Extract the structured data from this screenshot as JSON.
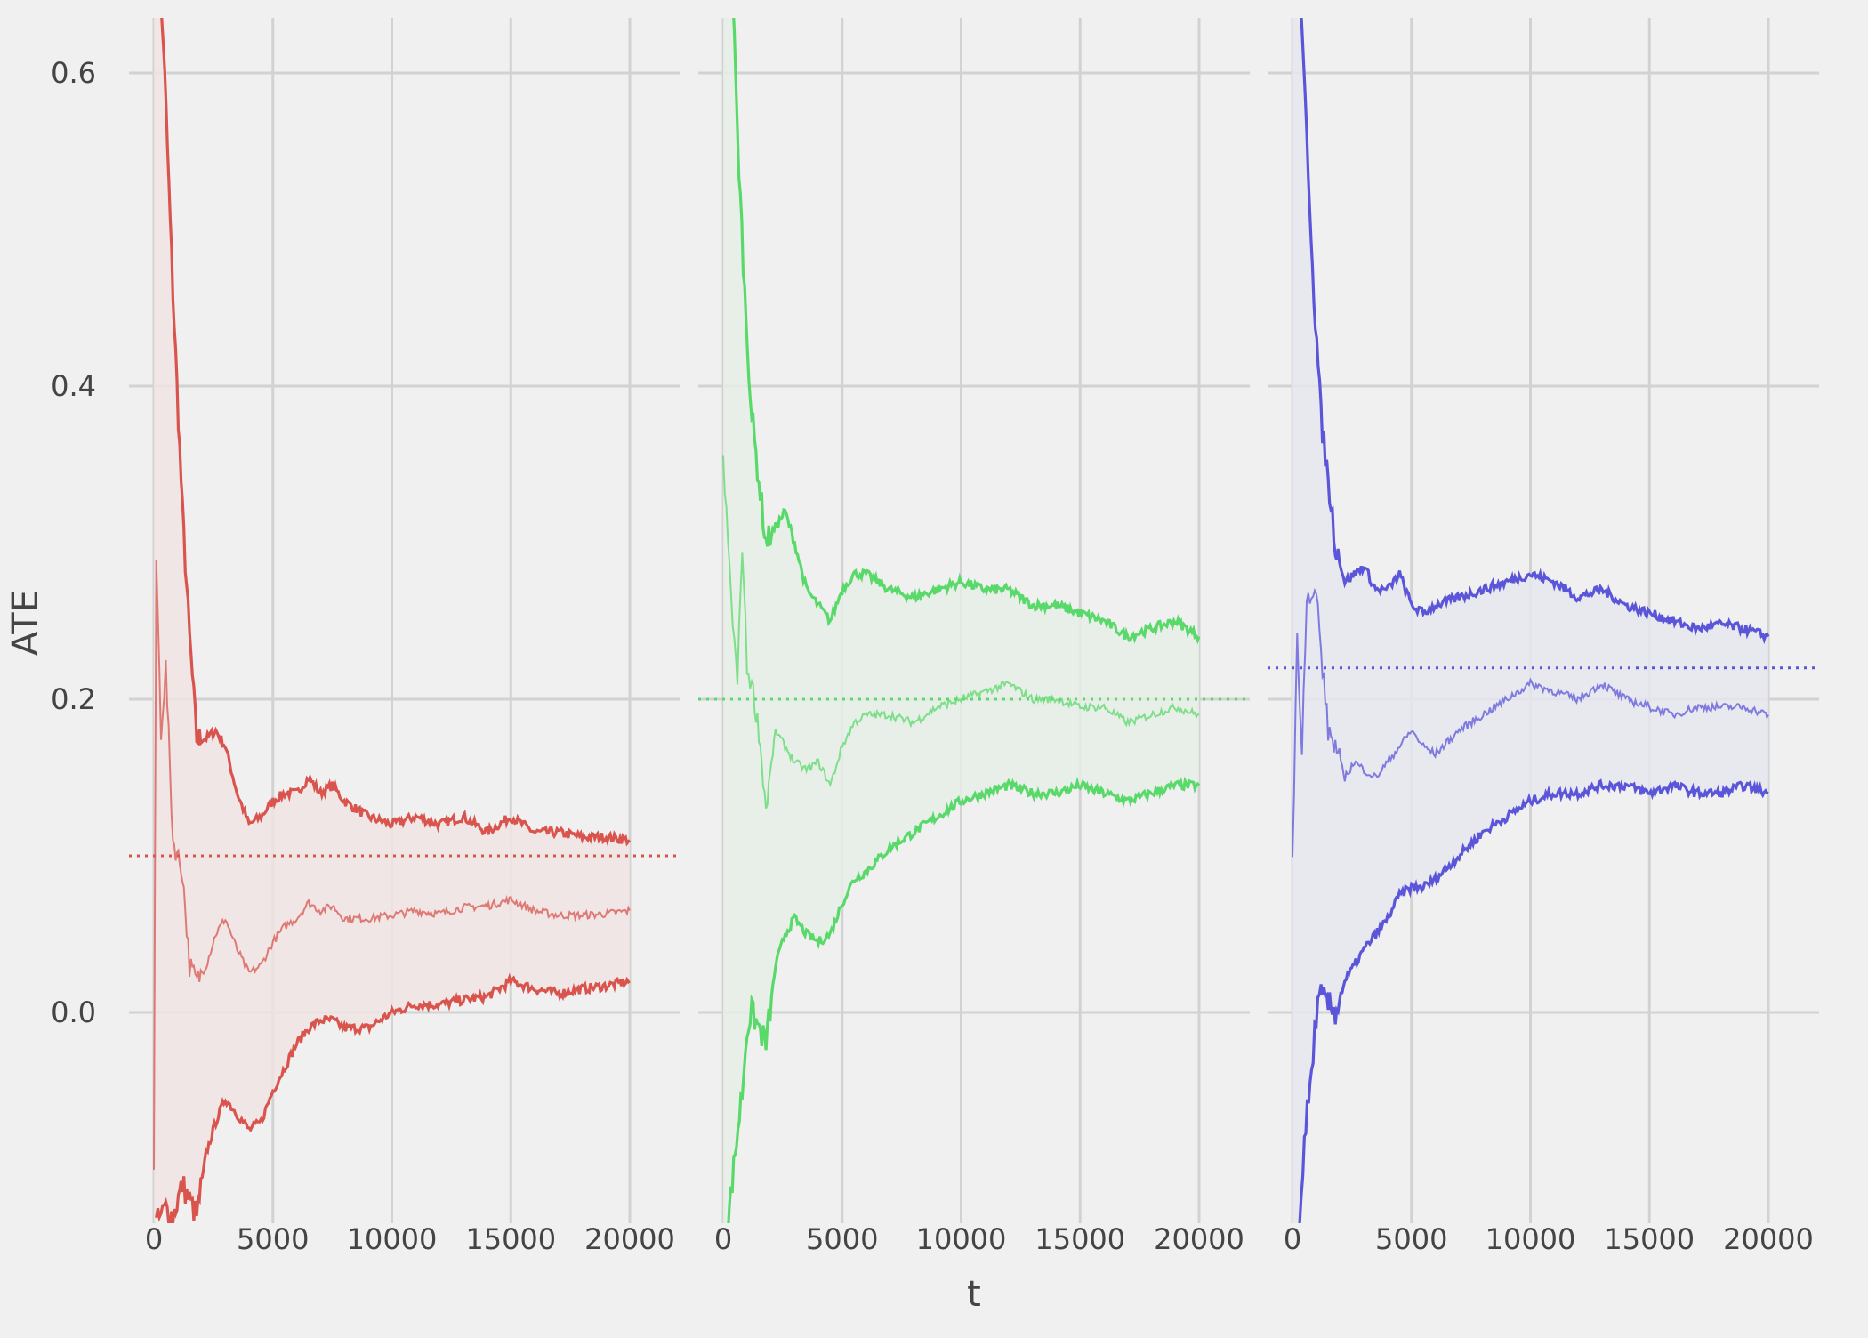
{
  "chart_data": {
    "type": "line",
    "xlabel": "t",
    "ylabel": "ATE",
    "ylim": [
      -0.135,
      0.635
    ],
    "xlim": [
      -1000,
      21000
    ],
    "y_ticks": [
      0.0,
      0.2,
      0.4,
      0.6
    ],
    "y_tick_labels": [
      "0.0",
      "0.2",
      "0.4",
      "0.6"
    ],
    "x_ticks": [
      0,
      5000,
      10000,
      15000,
      20000
    ],
    "x_tick_labels": [
      "0",
      "5000",
      "10000",
      "15000",
      "20000"
    ],
    "grid": true,
    "legend": "none",
    "panels": [
      {
        "color": "#d9544d",
        "fill_color": "#f0e4e4",
        "reference_line": 0.1,
        "series": [
          {
            "role": "upper",
            "x": [
              0,
              200,
              400,
              800,
              1200,
              1500,
              1800,
              2200,
              2600,
              3000,
              3500,
              4000,
              4500,
              5000,
              5500,
              6000,
              6500,
              7000,
              7500,
              8000,
              9000,
              10000,
              11000,
              12000,
              13000,
              14000,
              15000,
              16000,
              17000,
              18000,
              19000,
              20000
            ],
            "y": [
              0.72,
              0.66,
              0.62,
              0.46,
              0.32,
              0.24,
              0.175,
              0.175,
              0.18,
              0.17,
              0.14,
              0.12,
              0.125,
              0.135,
              0.14,
              0.14,
              0.15,
              0.14,
              0.145,
              0.135,
              0.125,
              0.12,
              0.125,
              0.12,
              0.125,
              0.115,
              0.125,
              0.115,
              0.115,
              0.112,
              0.112,
              0.11
            ]
          },
          {
            "role": "estimate",
            "x": [
              0,
              100,
              300,
              500,
              800,
              1200,
              1500,
              1800,
              2200,
              2600,
              3000,
              3500,
              4000,
              4500,
              5000,
              5500,
              6000,
              6500,
              7000,
              7500,
              8000,
              9000,
              10000,
              11000,
              12000,
              13000,
              14000,
              15000,
              16000,
              17000,
              18000,
              19000,
              20000
            ],
            "y": [
              -0.1,
              0.29,
              0.18,
              0.22,
              0.11,
              0.09,
              0.03,
              0.02,
              0.03,
              0.05,
              0.06,
              0.04,
              0.025,
              0.03,
              0.045,
              0.055,
              0.06,
              0.07,
              0.065,
              0.068,
              0.06,
              0.06,
              0.062,
              0.065,
              0.063,
              0.067,
              0.068,
              0.072,
              0.065,
              0.062,
              0.062,
              0.063,
              0.065
            ]
          },
          {
            "role": "lower",
            "x": [
              100,
              300,
              500,
              800,
              1200,
              1500,
              1800,
              2200,
              2600,
              3000,
              3500,
              4000,
              4500,
              5000,
              5500,
              6000,
              6500,
              7000,
              7500,
              8000,
              9000,
              10000,
              11000,
              12000,
              13000,
              14000,
              15000,
              16000,
              17000,
              18000,
              19000,
              20000
            ],
            "y": [
              -0.135,
              -0.13,
              -0.125,
              -0.13,
              -0.11,
              -0.12,
              -0.13,
              -0.09,
              -0.07,
              -0.055,
              -0.065,
              -0.075,
              -0.07,
              -0.05,
              -0.035,
              -0.02,
              -0.01,
              -0.005,
              -0.005,
              -0.01,
              -0.01,
              0.0,
              0.005,
              0.005,
              0.008,
              0.01,
              0.02,
              0.015,
              0.012,
              0.015,
              0.017,
              0.02
            ]
          }
        ]
      },
      {
        "color": "#59d96a",
        "fill_color": "#e6eee6",
        "reference_line": 0.2,
        "series": [
          {
            "role": "upper",
            "x": [
              0,
              200,
              400,
              600,
              900,
              1200,
              1500,
              1800,
              2200,
              2600,
              3000,
              3500,
              4000,
              4500,
              5000,
              5500,
              6000,
              7000,
              8000,
              9000,
              10000,
              11000,
              12000,
              13000,
              14000,
              15000,
              16000,
              17000,
              18000,
              19000,
              20000
            ],
            "y": [
              0.72,
              0.72,
              0.65,
              0.56,
              0.46,
              0.38,
              0.34,
              0.3,
              0.31,
              0.32,
              0.3,
              0.27,
              0.26,
              0.25,
              0.27,
              0.28,
              0.28,
              0.27,
              0.265,
              0.27,
              0.275,
              0.27,
              0.27,
              0.26,
              0.26,
              0.255,
              0.25,
              0.24,
              0.245,
              0.25,
              0.24
            ]
          },
          {
            "role": "estimate",
            "x": [
              0,
              200,
              400,
              600,
              800,
              1000,
              1200,
              1500,
              1800,
              2200,
              2600,
              3000,
              3500,
              4000,
              4500,
              5000,
              5500,
              6000,
              7000,
              8000,
              9000,
              10000,
              11000,
              12000,
              13000,
              14000,
              15000,
              16000,
              17000,
              18000,
              19000,
              20000
            ],
            "y": [
              0.35,
              0.3,
              0.25,
              0.21,
              0.3,
              0.22,
              0.21,
              0.18,
              0.13,
              0.18,
              0.17,
              0.16,
              0.155,
              0.16,
              0.145,
              0.17,
              0.185,
              0.19,
              0.19,
              0.185,
              0.195,
              0.2,
              0.205,
              0.21,
              0.2,
              0.2,
              0.195,
              0.195,
              0.185,
              0.19,
              0.195,
              0.19
            ]
          },
          {
            "role": "lower",
            "x": [
              200,
              500,
              800,
              1000,
              1200,
              1500,
              1800,
              2200,
              2600,
              3000,
              3500,
              4000,
              4500,
              5000,
              5500,
              6000,
              7000,
              8000,
              9000,
              10000,
              11000,
              12000,
              13000,
              14000,
              15000,
              16000,
              17000,
              18000,
              19000,
              20000
            ],
            "y": [
              -0.135,
              -0.09,
              -0.05,
              -0.01,
              0.0,
              -0.01,
              -0.02,
              0.03,
              0.05,
              0.06,
              0.05,
              0.045,
              0.05,
              0.07,
              0.085,
              0.09,
              0.105,
              0.115,
              0.125,
              0.135,
              0.14,
              0.145,
              0.14,
              0.14,
              0.145,
              0.14,
              0.135,
              0.14,
              0.145,
              0.145
            ]
          }
        ]
      },
      {
        "color": "#5b55d9",
        "fill_color": "#e6e6ee",
        "reference_line": 0.22,
        "series": [
          {
            "role": "upper",
            "x": [
              0,
              200,
              400,
              600,
              900,
              1200,
              1500,
              1800,
              2200,
              2600,
              3000,
              3500,
              4000,
              4500,
              5000,
              5500,
              6000,
              7000,
              8000,
              9000,
              10000,
              11000,
              12000,
              13000,
              14000,
              15000,
              16000,
              17000,
              18000,
              19000,
              20000
            ],
            "y": [
              0.72,
              0.7,
              0.62,
              0.56,
              0.46,
              0.38,
              0.34,
              0.3,
              0.275,
              0.28,
              0.285,
              0.27,
              0.27,
              0.28,
              0.26,
              0.255,
              0.26,
              0.265,
              0.27,
              0.275,
              0.28,
              0.275,
              0.265,
              0.27,
              0.26,
              0.255,
              0.25,
              0.245,
              0.248,
              0.245,
              0.24
            ]
          },
          {
            "role": "estimate",
            "x": [
              0,
              200,
              400,
              600,
              800,
              1000,
              1200,
              1500,
              1800,
              2200,
              2600,
              3000,
              3500,
              4000,
              4500,
              5000,
              5500,
              6000,
              7000,
              8000,
              9000,
              10000,
              11000,
              12000,
              13000,
              14000,
              15000,
              16000,
              17000,
              18000,
              19000,
              20000
            ],
            "y": [
              0.1,
              0.24,
              0.17,
              0.27,
              0.26,
              0.27,
              0.23,
              0.18,
              0.17,
              0.15,
              0.16,
              0.155,
              0.15,
              0.16,
              0.17,
              0.18,
              0.17,
              0.165,
              0.18,
              0.19,
              0.2,
              0.21,
              0.205,
              0.2,
              0.21,
              0.2,
              0.195,
              0.19,
              0.195,
              0.195,
              0.195,
              0.19
            ]
          },
          {
            "role": "lower",
            "x": [
              300,
              500,
              800,
              1000,
              1200,
              1500,
              1800,
              2200,
              2600,
              3000,
              3500,
              4000,
              4500,
              5000,
              5500,
              6000,
              7000,
              8000,
              9000,
              10000,
              11000,
              12000,
              13000,
              14000,
              15000,
              16000,
              17000,
              18000,
              19000,
              20000
            ],
            "y": [
              -0.135,
              -0.08,
              -0.04,
              0.0,
              0.01,
              0.005,
              0.0,
              0.02,
              0.03,
              0.04,
              0.05,
              0.06,
              0.075,
              0.08,
              0.08,
              0.085,
              0.1,
              0.115,
              0.125,
              0.135,
              0.14,
              0.14,
              0.145,
              0.145,
              0.14,
              0.145,
              0.14,
              0.14,
              0.145,
              0.14
            ]
          }
        ]
      }
    ]
  }
}
